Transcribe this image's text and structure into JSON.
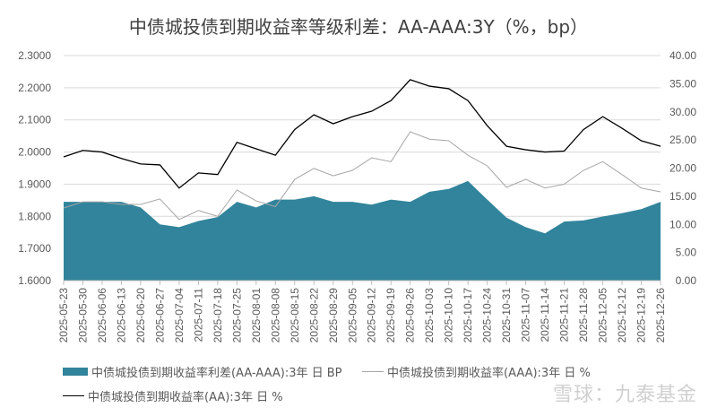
{
  "chart_data": {
    "type": "line",
    "title": "中债城投债到期收益率等级利差：AA-AAA:3Y（%，bp）",
    "x": [
      "2025-05-23",
      "2025-05-30",
      "2025-06-06",
      "2025-06-13",
      "2025-06-20",
      "2025-06-27",
      "2025-07-04",
      "2025-07-11",
      "2025-07-18",
      "2025-07-25",
      "2025-08-01",
      "2025-08-08",
      "2025-08-15",
      "2025-08-22",
      "2025-08-29",
      "2025-09-05",
      "2025-09-12",
      "2025-09-19",
      "2025-09-26",
      "2025-10-03",
      "2025-10-10",
      "2025-10-17",
      "2025-10-24",
      "2025-10-31",
      "2025-11-07",
      "2025-11-14",
      "2025-11-21",
      "2025-11-28",
      "2025-12-05",
      "2025-12-12",
      "2025-12-19",
      "2025-12-26"
    ],
    "left_axis": {
      "ylim": [
        1.6,
        2.3
      ],
      "ticks": [
        "1.6000",
        "1.7000",
        "1.8000",
        "1.9000",
        "2.0000",
        "2.1000",
        "2.2000",
        "2.3000"
      ]
    },
    "right_axis": {
      "ylim": [
        0,
        40
      ],
      "ticks": [
        "0.00",
        "5.00",
        "10.00",
        "15.00",
        "20.00",
        "25.00",
        "30.00",
        "35.00",
        "40.00"
      ]
    },
    "grid": true,
    "legend_position": "bottom",
    "series": [
      {
        "name": "中债城投债到期收益率利差(AA-AAA):3年 日 BP",
        "type": "area",
        "axis": "right",
        "color": "#31849b",
        "values": [
          14,
          14,
          14,
          14,
          13,
          10,
          9.5,
          10.6,
          11.3,
          14,
          13,
          14.4,
          14.4,
          15,
          14,
          14,
          13.5,
          14.4,
          14,
          15.8,
          16.3,
          17.7,
          14.4,
          11.2,
          9.5,
          8.4,
          10.5,
          10.7,
          11.4,
          12,
          12.7,
          14
        ]
      },
      {
        "name": "中债城投债到期收益率(AAA):3年 日 %",
        "type": "line",
        "axis": "left",
        "color": "#a6a6a6",
        "values": [
          1.826,
          1.845,
          1.845,
          1.837,
          1.837,
          1.854,
          1.79,
          1.818,
          1.8,
          1.882,
          1.848,
          1.83,
          1.915,
          1.949,
          1.926,
          1.943,
          1.982,
          1.97,
          2.063,
          2.04,
          2.035,
          1.99,
          1.957,
          1.89,
          1.915,
          1.888,
          1.9,
          1.943,
          1.97,
          1.93,
          1.888,
          1.876
        ]
      },
      {
        "name": "中债城投债到期收益率(AA):3年 日 %",
        "type": "line",
        "axis": "left",
        "color": "#000000",
        "values": [
          1.985,
          2.005,
          2.0,
          1.98,
          1.963,
          1.96,
          1.888,
          1.935,
          1.93,
          2.03,
          2.01,
          1.99,
          2.07,
          2.116,
          2.088,
          2.11,
          2.127,
          2.16,
          2.225,
          2.205,
          2.197,
          2.16,
          2.082,
          2.018,
          2.007,
          2.0,
          2.003,
          2.07,
          2.11,
          2.074,
          2.035,
          2.018
        ]
      }
    ]
  },
  "watermark": "雪球：九泰基金"
}
